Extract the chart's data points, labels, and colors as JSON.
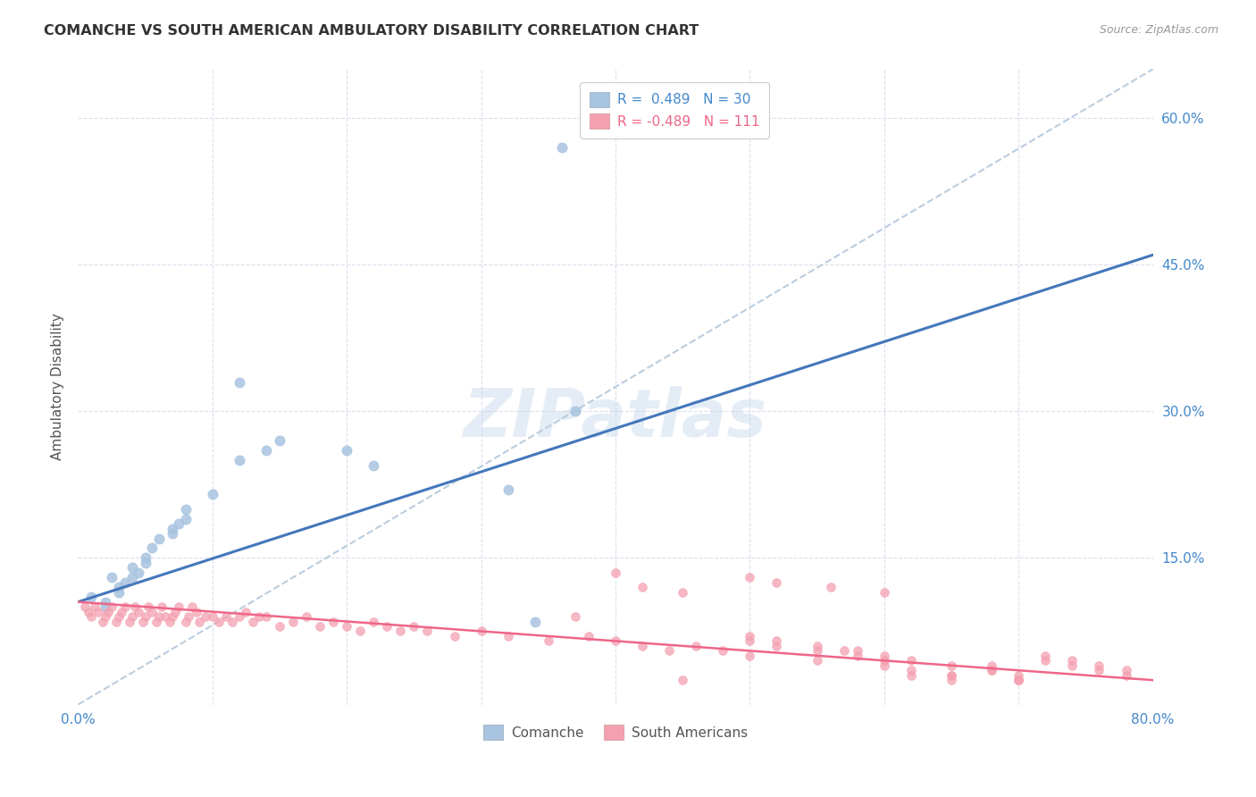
{
  "title": "COMANCHE VS SOUTH AMERICAN AMBULATORY DISABILITY CORRELATION CHART",
  "source": "Source: ZipAtlas.com",
  "ylabel": "Ambulatory Disability",
  "xlim": [
    0.0,
    0.8
  ],
  "ylim": [
    0.0,
    0.65
  ],
  "watermark": "ZIPatlas",
  "comanche_R": 0.489,
  "comanche_N": 30,
  "sa_R": -0.489,
  "sa_N": 111,
  "comanche_color": "#a8c4e0",
  "sa_color": "#f4a0b0",
  "comanche_line_color": "#4477bb",
  "sa_line_color": "#ee6688",
  "dashed_line_color": "#bbccdd",
  "background_color": "#ffffff",
  "grid_color": "#ddddee",
  "comanche_scatter_x": [
    0.01,
    0.02,
    0.02,
    0.025,
    0.03,
    0.03,
    0.035,
    0.04,
    0.04,
    0.045,
    0.05,
    0.05,
    0.055,
    0.06,
    0.07,
    0.07,
    0.075,
    0.08,
    0.08,
    0.1,
    0.12,
    0.12,
    0.14,
    0.15,
    0.2,
    0.22,
    0.32,
    0.34,
    0.36,
    0.37
  ],
  "comanche_scatter_y": [
    0.11,
    0.105,
    0.1,
    0.13,
    0.12,
    0.115,
    0.125,
    0.13,
    0.14,
    0.135,
    0.145,
    0.15,
    0.16,
    0.17,
    0.175,
    0.18,
    0.185,
    0.19,
    0.2,
    0.215,
    0.33,
    0.25,
    0.26,
    0.27,
    0.26,
    0.245,
    0.22,
    0.085,
    0.57,
    0.3
  ],
  "sa_scatter_x": [
    0.005,
    0.008,
    0.01,
    0.012,
    0.015,
    0.018,
    0.02,
    0.022,
    0.025,
    0.028,
    0.03,
    0.032,
    0.035,
    0.038,
    0.04,
    0.042,
    0.045,
    0.048,
    0.05,
    0.052,
    0.055,
    0.058,
    0.06,
    0.062,
    0.065,
    0.068,
    0.07,
    0.072,
    0.075,
    0.08,
    0.082,
    0.085,
    0.088,
    0.09,
    0.095,
    0.1,
    0.105,
    0.11,
    0.115,
    0.12,
    0.125,
    0.13,
    0.135,
    0.14,
    0.15,
    0.16,
    0.17,
    0.18,
    0.19,
    0.2,
    0.21,
    0.22,
    0.23,
    0.24,
    0.25,
    0.26,
    0.28,
    0.3,
    0.32,
    0.35,
    0.37,
    0.38,
    0.4,
    0.42,
    0.44,
    0.46,
    0.48,
    0.5,
    0.52,
    0.55,
    0.58,
    0.6,
    0.62,
    0.65,
    0.68,
    0.7,
    0.72,
    0.74,
    0.76,
    0.78,
    0.4,
    0.42,
    0.45,
    0.5,
    0.52,
    0.56,
    0.6,
    0.65,
    0.7,
    0.45,
    0.5,
    0.55,
    0.57,
    0.6,
    0.62,
    0.65,
    0.68,
    0.7,
    0.72,
    0.74,
    0.76,
    0.78,
    0.5,
    0.52,
    0.55,
    0.58,
    0.6,
    0.62,
    0.65,
    0.68,
    0.7
  ],
  "sa_scatter_y": [
    0.1,
    0.095,
    0.09,
    0.1,
    0.095,
    0.085,
    0.09,
    0.095,
    0.1,
    0.085,
    0.09,
    0.095,
    0.1,
    0.085,
    0.09,
    0.1,
    0.095,
    0.085,
    0.09,
    0.1,
    0.095,
    0.085,
    0.09,
    0.1,
    0.09,
    0.085,
    0.09,
    0.095,
    0.1,
    0.085,
    0.09,
    0.1,
    0.095,
    0.085,
    0.09,
    0.09,
    0.085,
    0.09,
    0.085,
    0.09,
    0.095,
    0.085,
    0.09,
    0.09,
    0.08,
    0.085,
    0.09,
    0.08,
    0.085,
    0.08,
    0.075,
    0.085,
    0.08,
    0.075,
    0.08,
    0.075,
    0.07,
    0.075,
    0.07,
    0.065,
    0.09,
    0.07,
    0.065,
    0.06,
    0.055,
    0.06,
    0.055,
    0.07,
    0.065,
    0.06,
    0.055,
    0.05,
    0.045,
    0.04,
    0.035,
    0.03,
    0.045,
    0.04,
    0.035,
    0.03,
    0.135,
    0.12,
    0.115,
    0.13,
    0.125,
    0.12,
    0.115,
    0.03,
    0.025,
    0.025,
    0.05,
    0.045,
    0.055,
    0.04,
    0.035,
    0.03,
    0.035,
    0.025,
    0.05,
    0.045,
    0.04,
    0.035,
    0.065,
    0.06,
    0.055,
    0.05,
    0.045,
    0.03,
    0.025,
    0.04,
    0.025
  ],
  "comanche_line_x0": 0.0,
  "comanche_line_y0": 0.105,
  "comanche_line_x1": 0.8,
  "comanche_line_y1": 0.46,
  "sa_line_x0": 0.0,
  "sa_line_y0": 0.105,
  "sa_line_x1": 0.8,
  "sa_line_y1": 0.025,
  "diag_line_x0": 0.0,
  "diag_line_y0": 0.0,
  "diag_line_x1": 0.8,
  "diag_line_y1": 0.65
}
